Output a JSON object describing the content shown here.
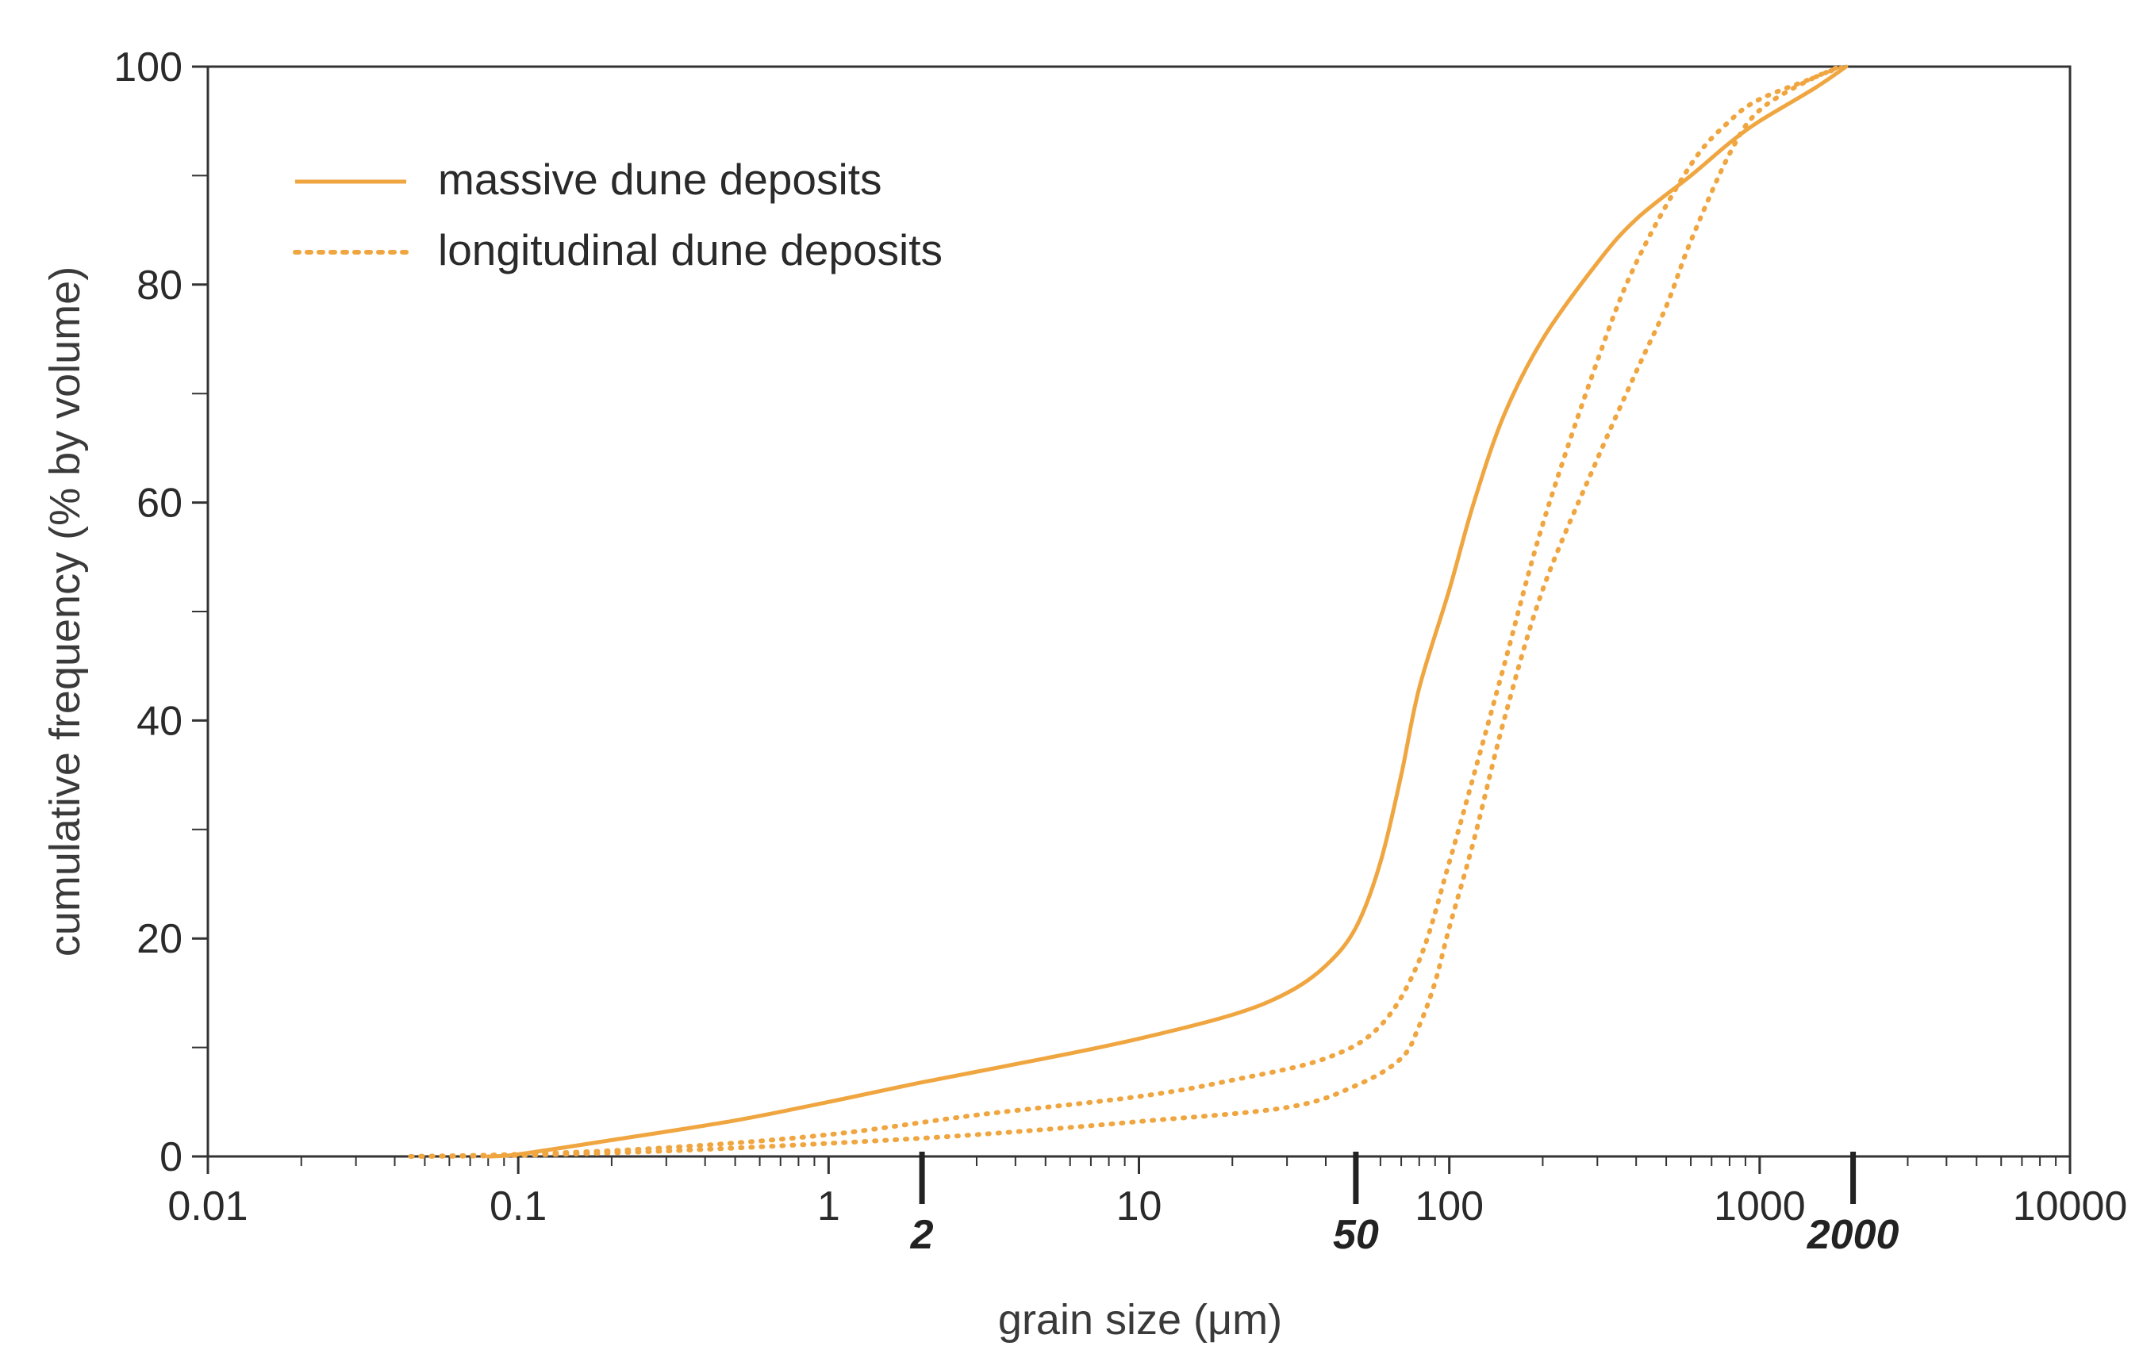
{
  "chart_data": {
    "type": "line",
    "title": "",
    "xlabel": "grain size (μm)",
    "ylabel": "cumulative frequency (% by volume)",
    "xscale": "log",
    "xlim": [
      0.01,
      10000
    ],
    "ylim": [
      0,
      100
    ],
    "xticks": [
      {
        "value": 0.01,
        "label": "0.01"
      },
      {
        "value": 0.1,
        "label": "0.1"
      },
      {
        "value": 1,
        "label": "1"
      },
      {
        "value": 10,
        "label": "10"
      },
      {
        "value": 100,
        "label": "100"
      },
      {
        "value": 1000,
        "label": "1000"
      },
      {
        "value": 10000,
        "label": "10000"
      }
    ],
    "yticks": [
      {
        "value": 0,
        "label": "0"
      },
      {
        "value": 20,
        "label": "20"
      },
      {
        "value": 40,
        "label": "40"
      },
      {
        "value": 60,
        "label": "60"
      },
      {
        "value": 80,
        "label": "80"
      },
      {
        "value": 100,
        "label": "100"
      }
    ],
    "boundary_markers": [
      {
        "value": 2,
        "label": "2"
      },
      {
        "value": 50,
        "label": "50"
      },
      {
        "value": 2000,
        "label": "2000"
      }
    ],
    "grid": false,
    "legend_position": "top-left",
    "colors": {
      "series": "#f0a640",
      "axis": "#333333"
    },
    "series": [
      {
        "name": "massive dune deposits",
        "style": "solid",
        "points": [
          [
            0.08,
            0
          ],
          [
            0.1,
            0.2
          ],
          [
            0.2,
            1.5
          ],
          [
            0.5,
            3.3
          ],
          [
            1,
            5
          ],
          [
            2,
            6.8
          ],
          [
            5,
            9
          ],
          [
            10,
            10.8
          ],
          [
            20,
            13
          ],
          [
            30,
            15
          ],
          [
            40,
            17.5
          ],
          [
            50,
            21
          ],
          [
            60,
            27
          ],
          [
            70,
            35
          ],
          [
            80,
            43
          ],
          [
            100,
            52
          ],
          [
            120,
            60
          ],
          [
            150,
            68
          ],
          [
            200,
            75
          ],
          [
            300,
            82
          ],
          [
            400,
            86
          ],
          [
            600,
            90
          ],
          [
            800,
            93
          ],
          [
            1000,
            95
          ],
          [
            1500,
            98
          ],
          [
            1900,
            100
          ]
        ]
      },
      {
        "name": "longitudinal dune deposits",
        "style": "dotted",
        "points": [
          [
            0.045,
            0
          ],
          [
            0.1,
            0.2
          ],
          [
            0.3,
            0.8
          ],
          [
            1,
            2
          ],
          [
            3,
            3.8
          ],
          [
            10,
            5.5
          ],
          [
            20,
            7
          ],
          [
            40,
            9
          ],
          [
            60,
            12
          ],
          [
            80,
            18
          ],
          [
            100,
            27
          ],
          [
            120,
            35
          ],
          [
            150,
            45
          ],
          [
            200,
            58
          ],
          [
            300,
            73
          ],
          [
            400,
            82
          ],
          [
            600,
            91
          ],
          [
            800,
            95
          ],
          [
            1000,
            97
          ],
          [
            1500,
            99
          ],
          [
            1800,
            100
          ]
        ]
      },
      {
        "name": "",
        "style": "dotted",
        "points": [
          [
            0.045,
            0
          ],
          [
            0.1,
            0.1
          ],
          [
            0.3,
            0.5
          ],
          [
            1,
            1.2
          ],
          [
            3,
            2
          ],
          [
            10,
            3.2
          ],
          [
            30,
            4.5
          ],
          [
            50,
            6.5
          ],
          [
            70,
            9
          ],
          [
            80,
            12
          ],
          [
            90,
            16
          ],
          [
            100,
            21
          ],
          [
            120,
            29
          ],
          [
            150,
            40
          ],
          [
            200,
            52
          ],
          [
            300,
            64
          ],
          [
            400,
            72
          ],
          [
            500,
            78
          ],
          [
            600,
            84
          ],
          [
            800,
            92
          ],
          [
            1000,
            96
          ],
          [
            1500,
            99
          ],
          [
            1900,
            100
          ]
        ]
      }
    ]
  }
}
